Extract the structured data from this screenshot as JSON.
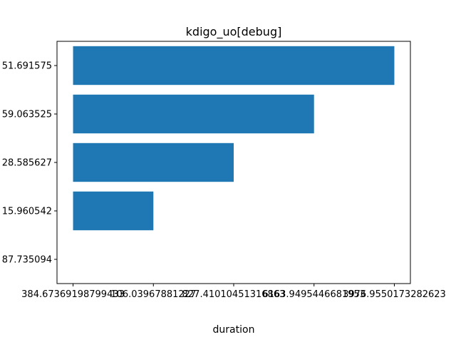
{
  "chart_data": {
    "type": "bar",
    "orientation": "horizontal",
    "title": "kdigo_uo[debug]",
    "xlabel": "duration",
    "ylabel": "",
    "categories": [
      "87.735094",
      "15.960542",
      "28.585627",
      "59.063525",
      "51.691575"
    ],
    "values": [
      0,
      1,
      2,
      3,
      4
    ],
    "x_tick_labels": [
      "384.67369198799433",
      "106.03967881227",
      "827.41010451316863",
      "6163.9495446681953",
      "3976.9550173282623"
    ],
    "xlim": [
      -0.2,
      4.2
    ],
    "bar_color": "#1f77b4",
    "grid": false,
    "legend": false
  }
}
